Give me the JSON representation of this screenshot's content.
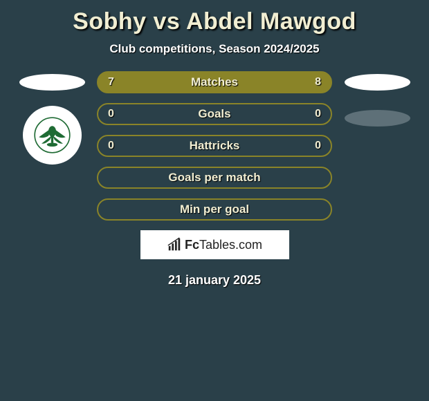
{
  "header": {
    "title": "Sobhy vs Abdel Mawgod",
    "subtitle": "Club competitions, Season 2024/2025"
  },
  "stats": {
    "rows": [
      {
        "left": "7",
        "label": "Matches",
        "right": "8",
        "show_values": true,
        "bg": "#8a8428",
        "border": "#8a8428"
      },
      {
        "left": "0",
        "label": "Goals",
        "right": "0",
        "show_values": true,
        "bg": "transparent",
        "border": "#8a8428"
      },
      {
        "left": "0",
        "label": "Hattricks",
        "right": "0",
        "show_values": true,
        "bg": "transparent",
        "border": "#8a8428"
      },
      {
        "left": "",
        "label": "Goals per match",
        "right": "",
        "show_values": false,
        "bg": "transparent",
        "border": "#8a8428"
      },
      {
        "left": "",
        "label": "Min per goal",
        "right": "",
        "show_values": false,
        "bg": "transparent",
        "border": "#8a8428"
      }
    ]
  },
  "left_side": {
    "pill1_color": "#ffffff",
    "club_logo_color": "#1f6b34"
  },
  "right_side": {
    "pill1_color": "#ffffff",
    "pill2_color": "#5e7078"
  },
  "footer": {
    "brand_prefix": "Fc",
    "brand_suffix": "Tables.com",
    "date": "21 january 2025"
  },
  "colors": {
    "page_bg": "#2a4049",
    "title_color": "#f1eed2",
    "olive": "#8a8428"
  }
}
